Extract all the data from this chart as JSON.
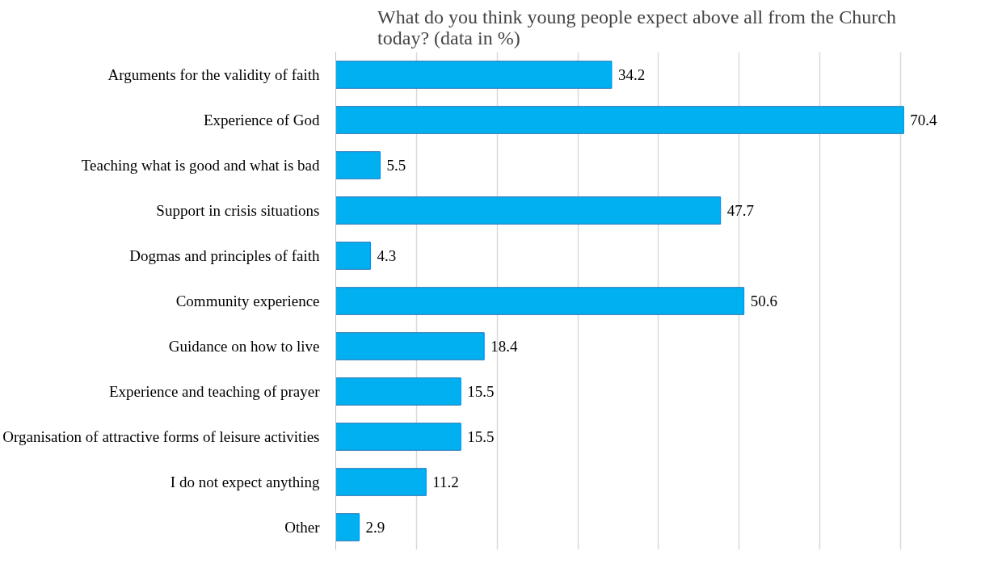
{
  "chart_data": {
    "type": "bar",
    "orientation": "horizontal",
    "title": "What do you think young people expect above all from the Church today? (data in %)",
    "categories": [
      "Arguments for the validity of faith",
      "Experience of God",
      "Teaching what is good and what is bad",
      "Support in crisis situations",
      "Dogmas and principles of faith",
      "Community experience",
      "Guidance on how to live",
      "Experience and teaching of prayer",
      "Organisation of attractive forms of leisure activities",
      "I do not expect anything",
      "Other"
    ],
    "values": [
      34.2,
      70.4,
      5.5,
      47.7,
      4.3,
      50.6,
      18.4,
      15.5,
      15.5,
      11.2,
      2.9
    ],
    "color": "#00b0f0",
    "grid": "x",
    "tick_labels": "y",
    "data_labels": true
  }
}
